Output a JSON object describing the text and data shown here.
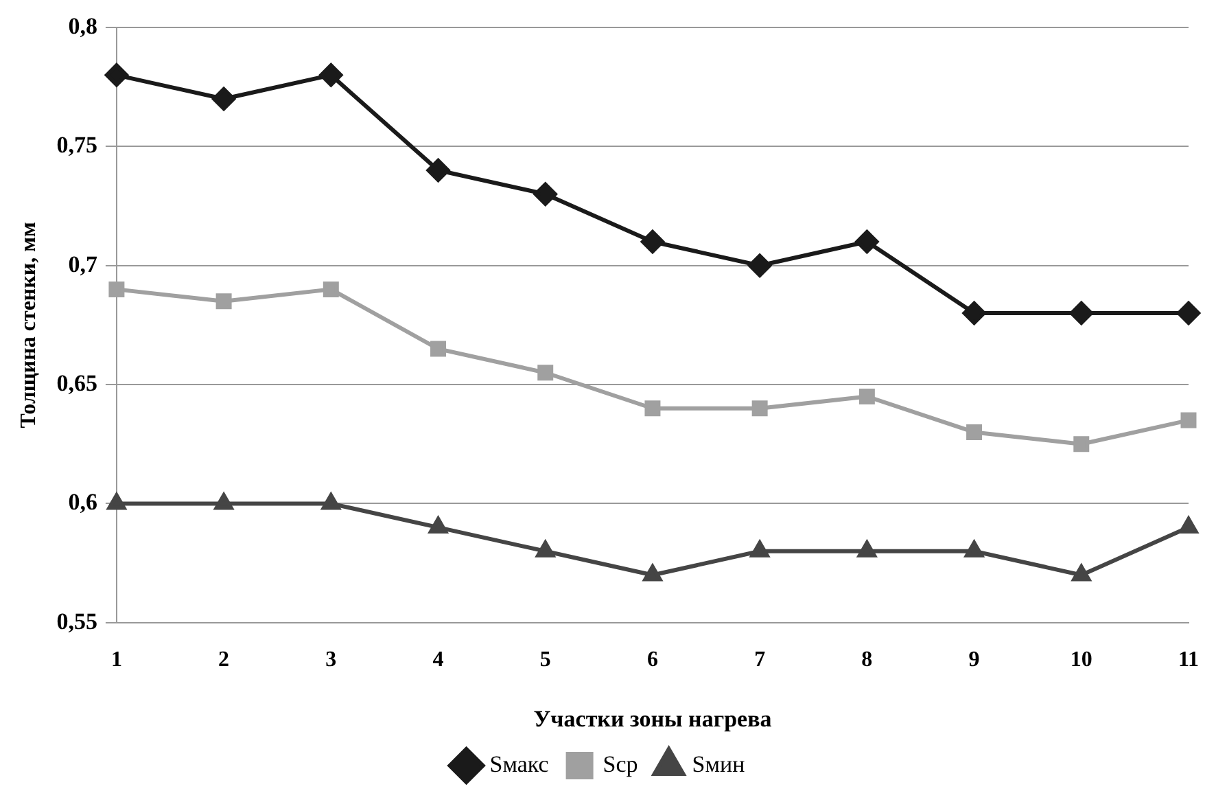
{
  "chart_data": {
    "type": "line",
    "xlabel": "Участки зоны нагрева",
    "ylabel": "Толщина стенки, мм",
    "categories": [
      "1",
      "2",
      "3",
      "4",
      "5",
      "6",
      "7",
      "8",
      "9",
      "10",
      "11"
    ],
    "series": [
      {
        "name": "Sмакс",
        "color": "#1a1a1a",
        "marker": "diamond",
        "values": [
          0.78,
          0.77,
          0.78,
          0.74,
          0.73,
          0.71,
          0.7,
          0.71,
          0.68,
          0.68,
          0.68
        ]
      },
      {
        "name": "Sср",
        "color": "#a0a0a0",
        "marker": "square",
        "values": [
          0.69,
          0.685,
          0.69,
          0.665,
          0.655,
          0.64,
          0.64,
          0.645,
          0.63,
          0.625,
          0.635
        ]
      },
      {
        "name": "Sмин",
        "color": "#454545",
        "marker": "triangle",
        "values": [
          0.6,
          0.6,
          0.6,
          0.59,
          0.58,
          0.57,
          0.58,
          0.58,
          0.58,
          0.57,
          0.59
        ]
      }
    ],
    "ylim": [
      0.55,
      0.8
    ],
    "yticks": [
      {
        "value": 0.55,
        "label": "0,55"
      },
      {
        "value": 0.6,
        "label": "0,6"
      },
      {
        "value": 0.65,
        "label": "0,65"
      },
      {
        "value": 0.7,
        "label": "0,7"
      },
      {
        "value": 0.75,
        "label": "0,75"
      },
      {
        "value": 0.8,
        "label": "0,8"
      }
    ],
    "grid": "y",
    "legend": "bottom",
    "line_style": "solid"
  }
}
